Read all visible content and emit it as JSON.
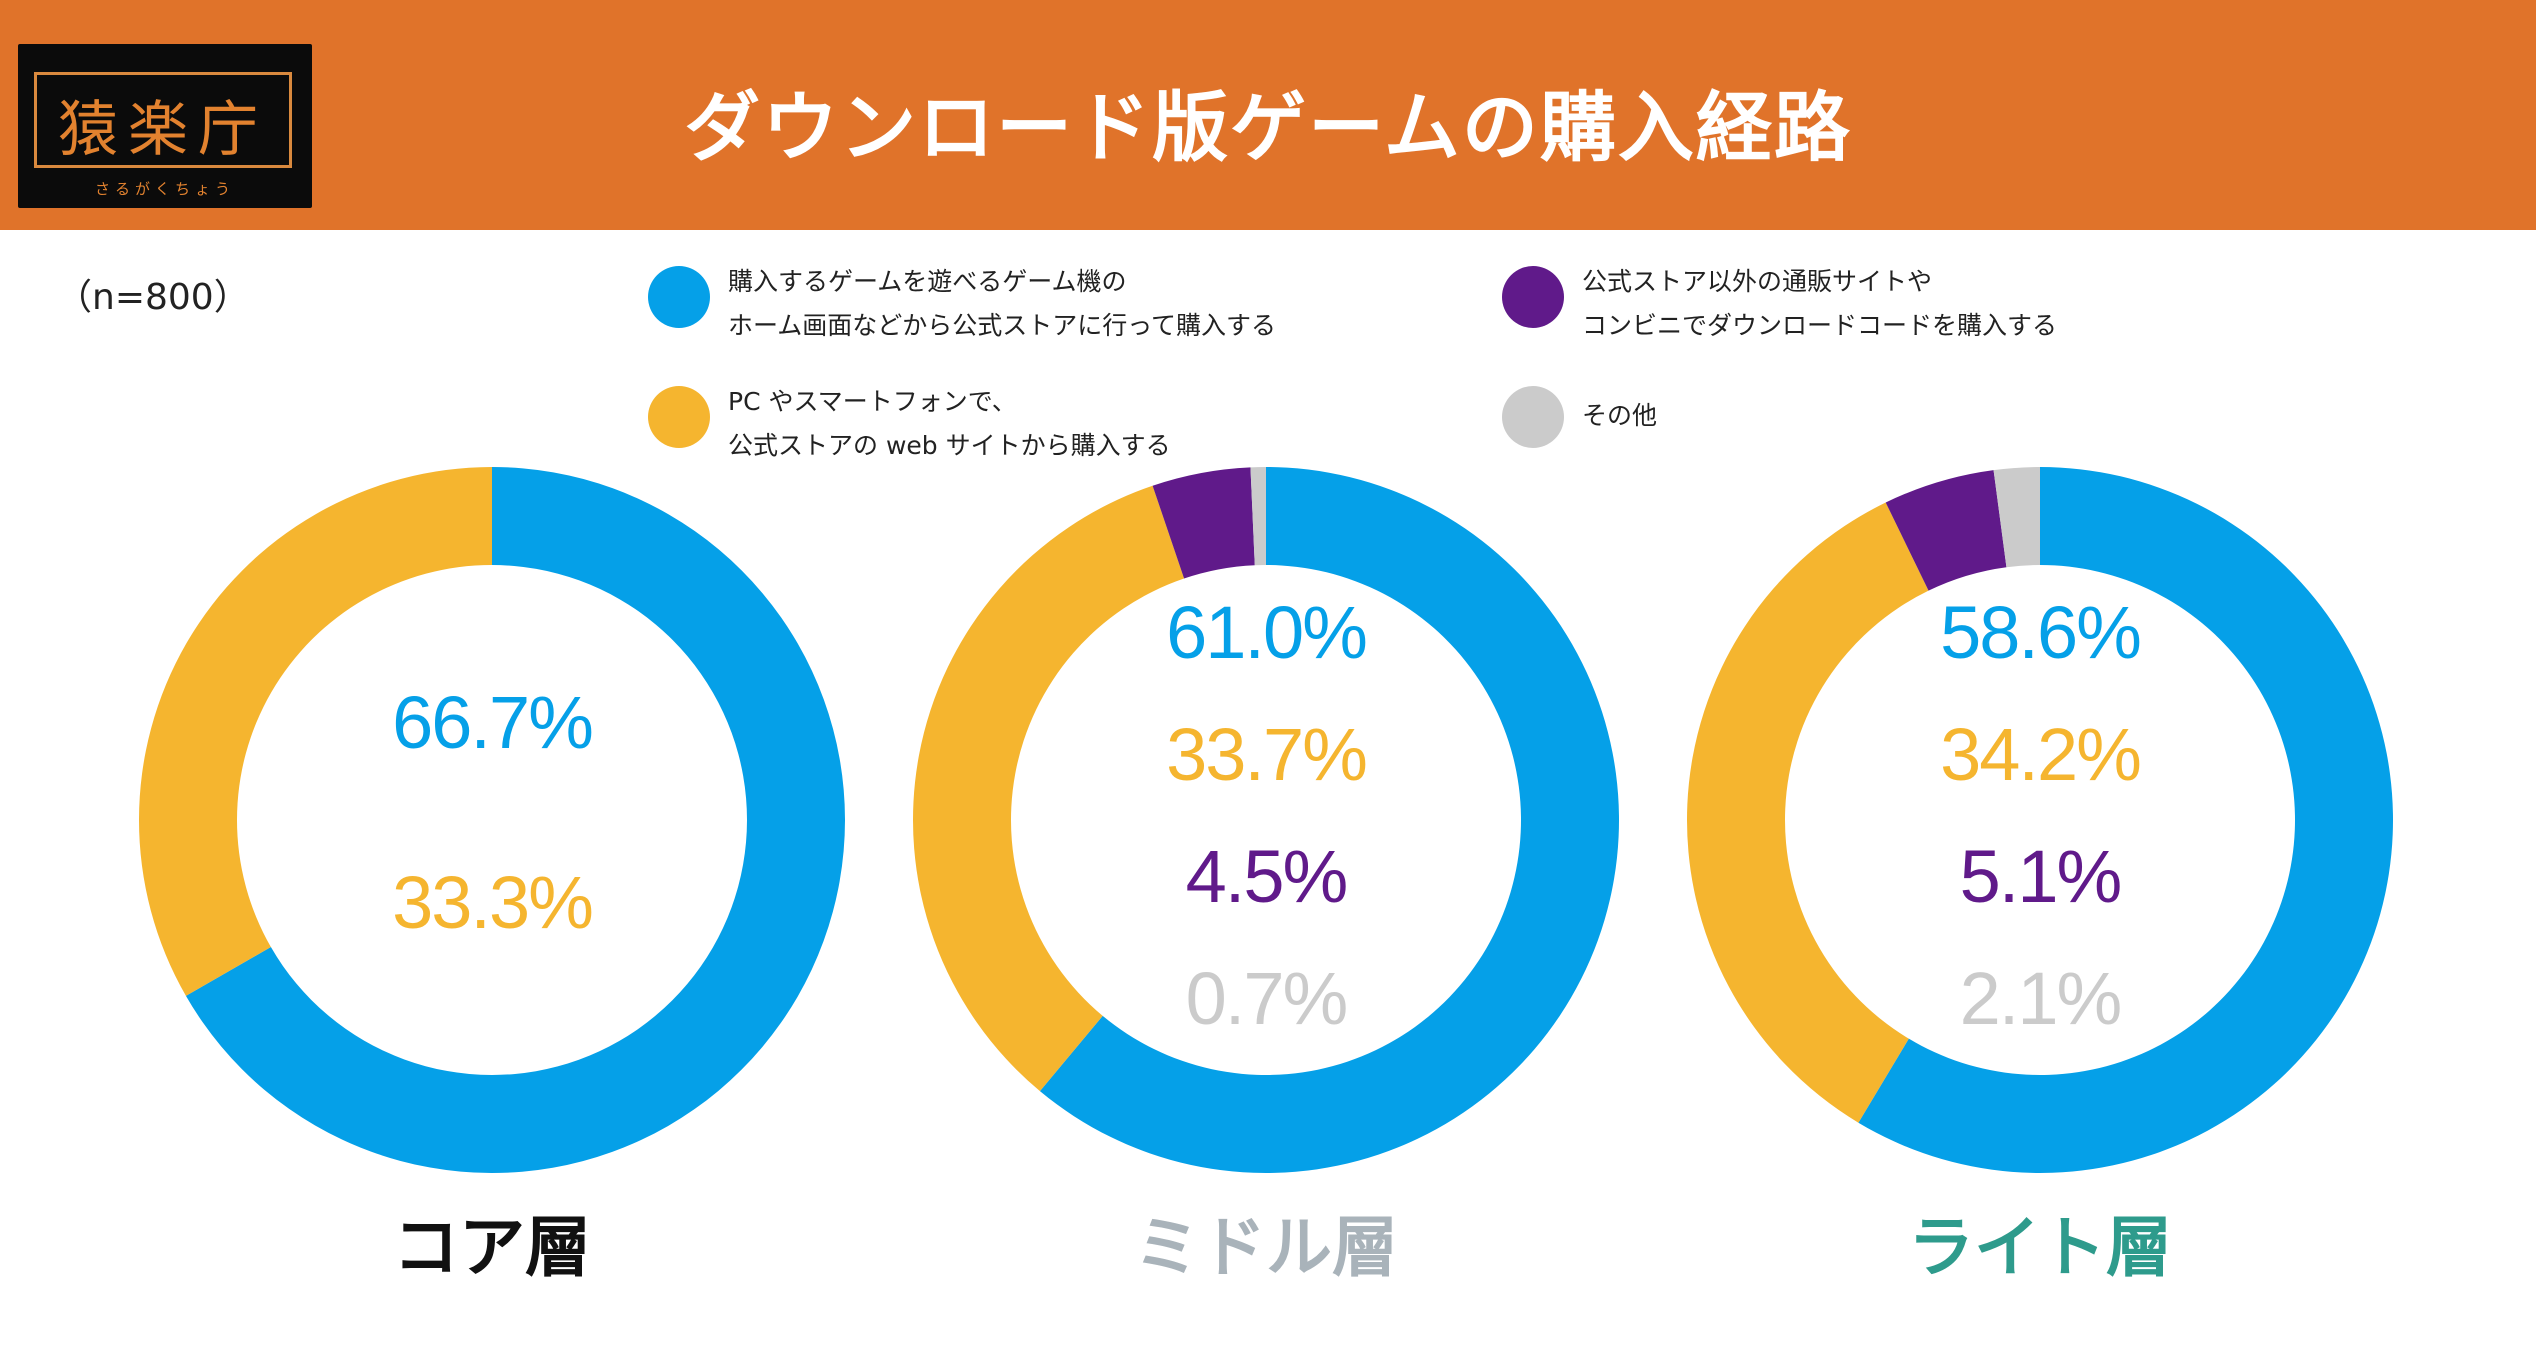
{
  "header": {
    "logo_kanji": "猿楽庁",
    "logo_kana": "さるがくちょう",
    "title": "ダウンロード版ゲームの購入経路"
  },
  "sample_size": "（n=800）",
  "colors": {
    "header_bg": "#e0732a",
    "blue": "#05a0e8",
    "yellow": "#f5b52f",
    "purple": "#601a8a",
    "gray": "#cbcbcb"
  },
  "legend": [
    {
      "color": "#05a0e8",
      "lines": [
        "購入するゲームを遊べるゲーム機の",
        "ホーム画面などから公式ストアに行って購入する"
      ]
    },
    {
      "color": "#601a8a",
      "lines": [
        "公式ストア以外の通販サイトや",
        "コンビニでダウンロードコードを購入する"
      ]
    },
    {
      "color": "#f5b52f",
      "lines": [
        "PC やスマートフォンで、",
        "公式ストアの web サイトから購入する"
      ]
    },
    {
      "color": "#cbcbcb",
      "lines": [
        "その他"
      ]
    }
  ],
  "chart_data": {
    "type": "donut",
    "title": "ダウンロード版ゲームの購入経路",
    "series_names": [
      "購入するゲームを遊べるゲーム機のホーム画面などから公式ストアに行って購入する",
      "PC やスマートフォンで、公式ストアの web サイトから購入する",
      "公式ストア以外の通販サイトやコンビニでダウンロードコードを購入する",
      "その他"
    ],
    "colors": [
      "#05a0e8",
      "#f5b52f",
      "#601a8a",
      "#cbcbcb"
    ],
    "charts": [
      {
        "name": "コア層",
        "name_color": "#111111",
        "values": [
          66.7,
          33.3
        ],
        "labels": [
          "66.7%",
          "33.3%"
        ]
      },
      {
        "name": "ミドル層",
        "name_color": "#a9b3ba",
        "values": [
          61.0,
          33.7,
          4.5,
          0.7
        ],
        "labels": [
          "61.0%",
          "33.7%",
          "4.5%",
          "0.7%"
        ]
      },
      {
        "name": "ライト層",
        "name_color": "#2e9b8c",
        "values": [
          58.6,
          34.2,
          5.1,
          2.1
        ],
        "labels": [
          "58.6%",
          "34.2%",
          "5.1%",
          "2.1%"
        ]
      }
    ]
  }
}
